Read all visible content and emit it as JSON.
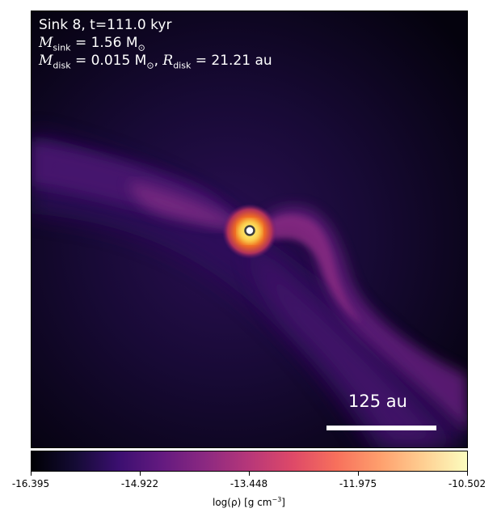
{
  "info": {
    "sink_line": "Sink 8, t=111.0 kyr",
    "m_sink_symbol": "M",
    "m_sink_sub": "sink",
    "m_sink_value": " = 1.56 M",
    "m_sink_unit": "⊙",
    "m_disk_symbol": "M",
    "m_disk_sub": "disk",
    "m_disk_value": " = 0.015 M",
    "m_disk_unit": "⊙",
    "r_disk_sep": ", ",
    "r_disk_symbol": "R",
    "r_disk_sub": "disk",
    "r_disk_value": " = 21.21 au"
  },
  "scale_bar": {
    "label": "125 au"
  },
  "colorbar": {
    "ticks": [
      "-16.395",
      "-14.922",
      "-13.448",
      "-11.975",
      "-10.502"
    ],
    "label_main": "log(ρ) [g cm",
    "label_exp": "−3",
    "label_end": "]"
  },
  "colors": {
    "background": "#05030f",
    "filament": "#5c1c76",
    "core": "#fca50a"
  }
}
